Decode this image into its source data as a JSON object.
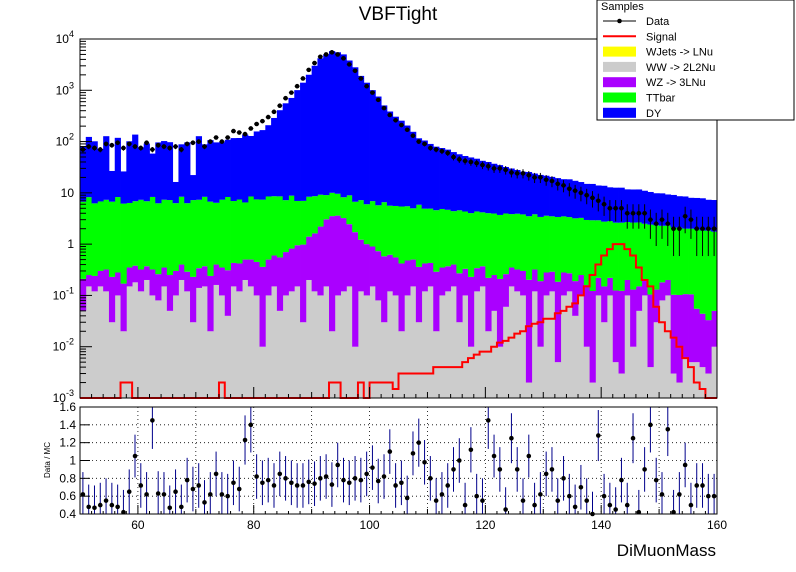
{
  "chart_data": [
    {
      "type": "stacked-histogram",
      "title": "VBFTight",
      "xlabel": "DiMuonMass",
      "ylabel": "",
      "xlim": [
        50,
        160
      ],
      "ylim": [
        0.001,
        10000
      ],
      "yscale": "log",
      "bin_width": 1,
      "x_ticks": [
        "60",
        "80",
        "100",
        "120",
        "140",
        "160"
      ],
      "y_ticks": [
        {
          "base": "10",
          "exp": "-3"
        },
        {
          "base": "10",
          "exp": "-2"
        },
        {
          "base": "10",
          "exp": "-1"
        },
        {
          "base": "1",
          "exp": ""
        },
        {
          "base": "10",
          "exp": ""
        },
        {
          "base": "10",
          "exp": "2"
        },
        {
          "base": "10",
          "exp": "3"
        },
        {
          "base": "10",
          "exp": "4"
        }
      ],
      "legend": {
        "title": "Samples",
        "placement": "top-right",
        "entries": [
          {
            "label": "Data",
            "kind": "marker",
            "color": "#000000"
          },
          {
            "label": "Signal",
            "kind": "line",
            "color": "#ff0000"
          },
          {
            "label": "WJets -> LNu",
            "kind": "fill",
            "color": "#ffff00"
          },
          {
            "label": "WW -> 2L2Nu",
            "kind": "fill",
            "color": "#cccccc"
          },
          {
            "label": "WZ -> 3LNu",
            "kind": "fill",
            "color": "#aa00ff"
          },
          {
            "label": "TTbar",
            "kind": "fill",
            "color": "#00ff00"
          },
          {
            "label": "DY",
            "kind": "fill",
            "color": "#0000ff"
          }
        ]
      },
      "series": [
        {
          "name": "WW -> 2L2Nu",
          "color": "#cccccc",
          "stacked": true,
          "values": [
            0.05,
            0.15,
            0.12,
            0.15,
            0.12,
            0.03,
            0.1,
            0.02,
            0.15,
            0.18,
            0.12,
            0.2,
            0.1,
            0.08,
            0.15,
            0.05,
            0.1,
            0.2,
            0.12,
            0.03,
            0.14,
            0.15,
            0.02,
            0.16,
            0.1,
            0.04,
            0.15,
            0.12,
            0.2,
            0.15,
            0.1,
            0.01,
            0.1,
            0.15,
            0.05,
            0.1,
            0.12,
            0.15,
            0.03,
            0.2,
            0.12,
            0.1,
            0.15,
            0.02,
            0.1,
            0.12,
            0.15,
            0.01,
            0.12,
            0.1,
            0.15,
            0.08,
            0.03,
            0.12,
            0.1,
            0.02,
            0.1,
            0.15,
            0.03,
            0.12,
            0.15,
            0.02,
            0.1,
            0.12,
            0.15,
            0.03,
            0.1,
            0.01,
            0.12,
            0.15,
            0.02,
            0.05,
            0.01,
            0.06,
            0.15,
            0.12,
            0.1,
            0.002,
            0.12,
            0.01,
            0.1,
            0.12,
            0.005,
            0.1,
            0.12,
            0.04,
            0.1,
            0.01,
            0.002,
            0.1,
            0.03,
            0.1,
            0.005,
            0.003,
            0.1,
            0.01,
            0.05,
            0.1,
            0.004,
            0.03,
            0.08,
            0.1,
            0.003,
            0.002,
            0.006,
            0.005,
            0.005,
            0.004,
            0.003,
            0.01
          ]
        },
        {
          "name": "WZ -> 3LNu",
          "color": "#aa00ff",
          "stacked": true,
          "values": [
            0.16,
            0.1,
            0.12,
            0.15,
            0.2,
            0.2,
            0.18,
            0.15,
            0.2,
            0.2,
            0.2,
            0.17,
            0.22,
            0.18,
            0.2,
            0.2,
            0.2,
            0.2,
            0.17,
            0.2,
            0.2,
            0.22,
            0.22,
            0.24,
            0.25,
            0.27,
            0.28,
            0.3,
            0.3,
            0.35,
            0.35,
            0.35,
            0.4,
            0.45,
            0.5,
            0.6,
            0.7,
            0.8,
            0.95,
            1.2,
            1.5,
            2.1,
            2.9,
            3.5,
            3.5,
            3.1,
            2.3,
            1.7,
            1.1,
            0.9,
            0.75,
            0.65,
            0.55,
            0.5,
            0.45,
            0.4,
            0.38,
            0.35,
            0.33,
            0.3,
            0.28,
            0.27,
            0.25,
            0.25,
            0.25,
            0.24,
            0.23,
            0.22,
            0.22,
            0.22,
            0.2,
            0.2,
            0.2,
            0.2,
            0.2,
            0.2,
            0.2,
            0.2,
            0.2,
            0.18,
            0.18,
            0.17,
            0.18,
            0.18,
            0.15,
            0.15,
            0.15,
            0.15,
            0.12,
            0.12,
            0.12,
            0.12,
            0.12,
            0.12,
            0.1,
            0.12,
            0.1,
            0.1,
            0.1,
            0.1,
            0.1,
            0.1,
            0.1,
            0.1,
            0.1,
            0.1,
            0.05,
            0.04,
            0.03,
            0.04
          ]
        },
        {
          "name": "TTbar",
          "color": "#00ff00",
          "stacked": true,
          "values": [
            6.5,
            8,
            6,
            6.5,
            7,
            6.5,
            8,
            6,
            6,
            6.5,
            7,
            6.5,
            8,
            6,
            7,
            7,
            6,
            8,
            6,
            7,
            7,
            8,
            6.5,
            6,
            7,
            8,
            6.5,
            7,
            6,
            8,
            7,
            7,
            8,
            8,
            8,
            6.5,
            8,
            6,
            6,
            7,
            7,
            7,
            6,
            6.5,
            6,
            5,
            6.5,
            5,
            6,
            5,
            6,
            5,
            6,
            5,
            5,
            5,
            5,
            4.5,
            5.5,
            4.5,
            4.5,
            4.3,
            4.5,
            4.3,
            4,
            4.3,
            4,
            3.8,
            4,
            3.8,
            3.8,
            3.7,
            3.5,
            3.7,
            3.5,
            3.6,
            3.5,
            3.3,
            3.5,
            3.2,
            3.3,
            3.2,
            3.2,
            3.2,
            3.1,
            3,
            3,
            2.8,
            2.8,
            2.7,
            2.6,
            2.6,
            2.5,
            2.5,
            2.5,
            2.5,
            2.5,
            2.3,
            2.3,
            2.2,
            2.1,
            2.1,
            2,
            2,
            1.9,
            1.9,
            1.9,
            1.8,
            1.8,
            1.7
          ]
        },
        {
          "name": "DY",
          "color": "#0000ff",
          "stacked": true,
          "values": [
            75,
            115,
            95,
            65,
            120,
            20,
            110,
            20,
            95,
            130,
            70,
            85,
            50,
            90,
            95,
            90,
            10,
            80,
            90,
            15,
            120,
            80,
            100,
            90,
            90,
            100,
            110,
            110,
            130,
            120,
            150,
            160,
            200,
            280,
            400,
            550,
            700,
            1000,
            1400,
            2000,
            3000,
            4200,
            5000,
            5800,
            5500,
            5000,
            3800,
            2800,
            1900,
            1400,
            1000,
            750,
            500,
            380,
            300,
            250,
            200,
            150,
            110,
            100,
            85,
            75,
            70,
            65,
            58,
            52,
            48,
            45,
            42,
            38,
            36,
            33,
            31,
            28,
            26,
            24,
            22,
            22,
            20,
            19,
            18,
            17,
            16,
            15,
            15,
            14,
            13,
            12,
            12,
            11,
            11,
            10,
            10,
            10,
            9,
            9,
            9,
            8.5,
            8,
            7.5,
            7.5,
            7,
            7,
            6.5,
            6.5,
            6,
            6,
            6,
            5.5,
            5.5,
            5,
            5.5
          ]
        },
        {
          "name": "Signal",
          "color": "#ff0000",
          "kind": "line",
          "values": [
            0.001,
            0.001,
            0.001,
            0.001,
            0.001,
            0.001,
            0.001,
            0.002,
            0.002,
            0.001,
            0.001,
            0.001,
            0.001,
            0.001,
            0.001,
            0.001,
            0.001,
            0.001,
            0.001,
            0.001,
            0.001,
            0.001,
            0.001,
            0.001,
            0.002,
            0.001,
            0.001,
            0.001,
            0.001,
            0.001,
            0.001,
            0.001,
            0.001,
            0.001,
            0.001,
            0.001,
            0.001,
            0.001,
            0.001,
            0.001,
            0.001,
            0.001,
            0.001,
            0.002,
            0.002,
            0.001,
            0.001,
            0.001,
            0.002,
            0.001,
            0.002,
            0.002,
            0.002,
            0.002,
            0.0015,
            0.003,
            0.003,
            0.003,
            0.003,
            0.003,
            0.003,
            0.004,
            0.004,
            0.004,
            0.004,
            0.004,
            0.005,
            0.006,
            0.007,
            0.008,
            0.008,
            0.01,
            0.012,
            0.013,
            0.015,
            0.018,
            0.02,
            0.025,
            0.028,
            0.03,
            0.035,
            0.035,
            0.045,
            0.05,
            0.06,
            0.07,
            0.1,
            0.15,
            0.25,
            0.4,
            0.6,
            0.8,
            1,
            1,
            0.8,
            0.6,
            0.35,
            0.2,
            0.15,
            0.06,
            0.03,
            0.02,
            0.015,
            0.01,
            0.006,
            0.004,
            0.002,
            0.0015,
            0.001,
            0.001
          ]
        },
        {
          "name": "Data",
          "color": "#000000",
          "kind": "marker",
          "values": [
            70,
            80,
            75,
            70,
            90,
            85,
            95,
            75,
            90,
            80,
            75,
            95,
            70,
            85,
            80,
            75,
            80,
            70,
            90,
            95,
            100,
            80,
            100,
            120,
            100,
            120,
            160,
            150,
            140,
            180,
            220,
            250,
            300,
            380,
            500,
            700,
            900,
            1200,
            1700,
            2500,
            3400,
            4500,
            5000,
            5500,
            5000,
            4200,
            3200,
            2400,
            1700,
            1200,
            900,
            650,
            450,
            330,
            260,
            210,
            170,
            130,
            100,
            90,
            75,
            70,
            65,
            60,
            50,
            45,
            42,
            40,
            38,
            35,
            33,
            30,
            30,
            28,
            25,
            24,
            24,
            22,
            20,
            20,
            18,
            17,
            15,
            14,
            12,
            11,
            10,
            9,
            8,
            7,
            6,
            5,
            5,
            5,
            4,
            4,
            4,
            4,
            3,
            2.5,
            3,
            2.5,
            2,
            2,
            3.5,
            3,
            2,
            2,
            2,
            2
          ]
        },
        {
          "name": "Data / MC",
          "color": "#000000",
          "kind": "ratio",
          "ylabel": "Data / MC",
          "ylim": [
            0.4,
            1.6
          ],
          "y_ticks": [
            "0.4",
            "0.6",
            "0.8",
            "1",
            "1.2",
            "1.4",
            "1.6"
          ],
          "values": [
            0.62,
            0.48,
            0.47,
            0.5,
            0.55,
            0.5,
            0.48,
            0.42,
            0.65,
            1.05,
            0.72,
            0.62,
            1.45,
            0.63,
            0.62,
            0.47,
            0.65,
            0.48,
            0.78,
            0.68,
            0.72,
            0.53,
            0.62,
            0.85,
            0.62,
            0.6,
            0.75,
            0.68,
            1.23,
            1.4,
            0.82,
            0.75,
            0.78,
            0.72,
            0.85,
            0.8,
            0.75,
            0.72,
            0.72,
            0.76,
            0.74,
            0.8,
            0.82,
            0.73,
            0.95,
            0.78,
            0.75,
            0.8,
            0.78,
            0.85,
            0.92,
            0.77,
            0.82,
            1.1,
            0.72,
            0.75,
            0.58,
            1.08,
            1.2,
            0.98,
            0.8,
            0.55,
            0.62,
            0.72,
            0.9,
            1.0,
            0.5,
            1.12,
            0.6,
            0.55,
            1.45,
            1.05,
            0.9,
            0.45,
            1.25,
            0.9,
            0.55,
            1.05,
            0.5,
            0.62,
            0.85,
            0.9,
            0.55,
            0.8,
            0.6,
            0.48,
            0.7,
            0.55,
            0.4,
            1.28,
            0.6,
            0.5,
            0.45,
            0.78,
            0.5,
            1.25,
            0.42,
            0.9,
            1.4,
            0.78,
            0.62,
            1.35,
            0.42,
            0.62,
            0.95,
            0.5,
            0.72,
            0.72,
            0.6,
            0.6
          ]
        }
      ]
    }
  ]
}
